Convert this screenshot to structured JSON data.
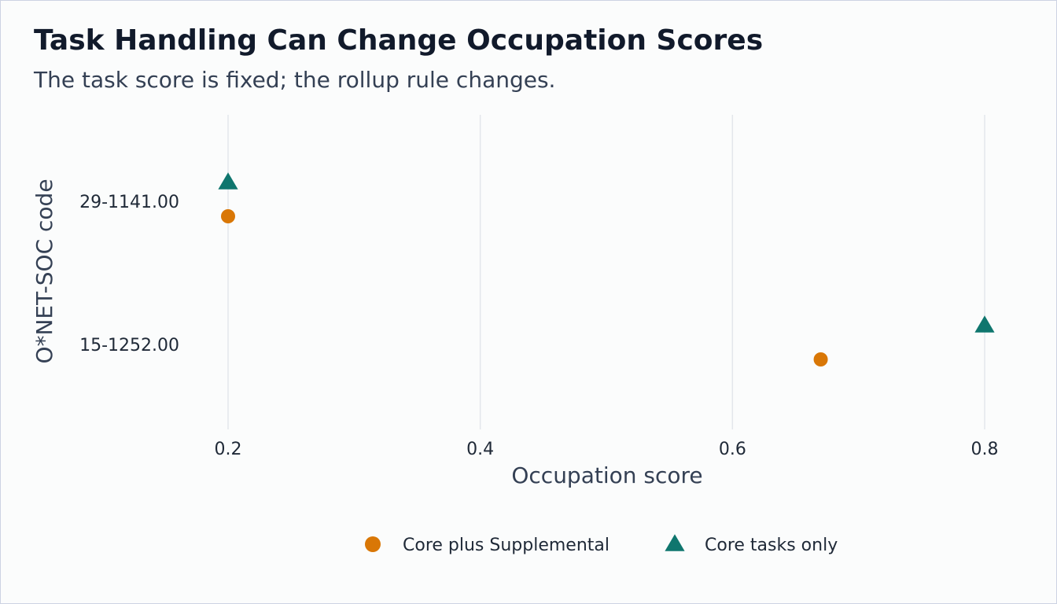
{
  "chart_data": {
    "type": "scatter",
    "title": "Task Handling Can Change Occupation Scores",
    "subtitle": "The task score is fixed; the rollup rule changes.",
    "xlabel": "Occupation score",
    "ylabel": "O*NET-SOC code",
    "categories": [
      "29-1141.00",
      "15-1252.00"
    ],
    "x_ticks": [
      0.2,
      0.4,
      0.6,
      0.8
    ],
    "xlim": [
      0.05,
      0.85
    ],
    "grid": "vertical",
    "legend_position": "bottom",
    "series": [
      {
        "name": "Core plus Supplemental",
        "marker": "circle",
        "color": "#d97706",
        "points": [
          {
            "category": "29-1141.00",
            "x": 0.2
          },
          {
            "category": "15-1252.00",
            "x": 0.67
          }
        ]
      },
      {
        "name": "Core tasks only",
        "marker": "triangle",
        "color": "#0f766e",
        "points": [
          {
            "category": "29-1141.00",
            "x": 0.2
          },
          {
            "category": "15-1252.00",
            "x": 0.8
          }
        ]
      }
    ]
  }
}
